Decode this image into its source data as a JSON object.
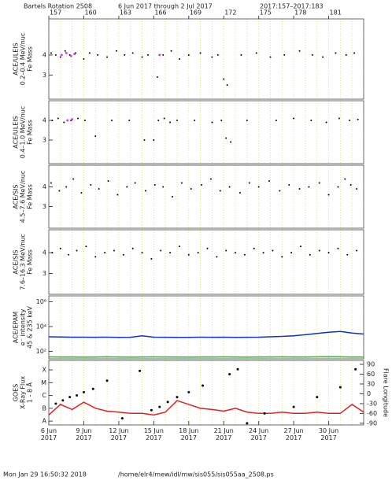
{
  "header": {
    "title": "Bartels Rotation 2508",
    "dates": "6 Jun 2017 through 2 Jul 2017",
    "doy": "2017:157–2017:183"
  },
  "footer": {
    "timestamp": "Mon Jan 29 16:50:32 2018",
    "path": "/home/elr4/mew/idl/mw/sis055/sis055aa_2508.ps"
  },
  "x_axis": {
    "xlim": [
      157,
      184
    ],
    "top_ticks": [
      157,
      160,
      163,
      166,
      169,
      172,
      175,
      178,
      181
    ],
    "bottom_ticks": [
      {
        "value": 157,
        "label": "6 Jun\n2017"
      },
      {
        "value": 160,
        "label": "9 Jun\n2017"
      },
      {
        "value": 163,
        "label": "12 Jun\n2017"
      },
      {
        "value": 166,
        "label": "15 Jun\n2017"
      },
      {
        "value": 169,
        "label": "18 Jun\n2017"
      },
      {
        "value": 172,
        "label": "21 Jun\n2017"
      },
      {
        "value": 175,
        "label": "24 Jun\n2017"
      },
      {
        "value": 178,
        "label": "27 Jun\n2017"
      },
      {
        "value": 181,
        "label": "30 Jun\n2017"
      }
    ],
    "grid_days": [
      157,
      158,
      159,
      160,
      161,
      162,
      163,
      164,
      165,
      166,
      167,
      168,
      169,
      170,
      171,
      172,
      173,
      174,
      175,
      176,
      177,
      178,
      179,
      180,
      181,
      182,
      183,
      184
    ],
    "grid_color": "#e6dc6a"
  },
  "chart_data": [
    {
      "type": "scatter",
      "ylabel": [
        "ACE/ULEIS",
        "0.2–0.4 MeV/nuc",
        "Fe Mass"
      ],
      "ylim": [
        1.8,
        5.8
      ],
      "yticks": [
        3,
        4
      ],
      "series": [
        {
          "color": "#000000",
          "x": [
            157.2,
            157.6,
            158.0,
            158.4,
            158.8,
            159.3,
            160.0,
            160.5,
            161.2,
            162.0,
            162.8,
            163.5,
            164.2,
            165.0,
            165.5,
            166.3,
            166.8,
            167.5,
            168.2,
            169.0,
            170.0,
            171.0,
            171.5,
            172.0,
            172.3,
            173.5,
            174.8,
            176.0,
            177.2,
            178.5,
            179.6,
            180.5,
            181.6,
            182.5,
            183.2
          ],
          "values": [
            4.1,
            4.0,
            3.9,
            4.2,
            4.0,
            4.1,
            3.8,
            4.1,
            4.0,
            3.9,
            4.2,
            4.0,
            4.1,
            3.9,
            4.0,
            2.9,
            4.0,
            4.2,
            3.8,
            4.0,
            4.1,
            3.9,
            4.0,
            2.8,
            2.5,
            4.0,
            4.1,
            3.9,
            4.0,
            4.2,
            4.0,
            3.9,
            4.1,
            4.0,
            4.1
          ]
        },
        {
          "color": "#d040e0",
          "x": [
            158.1,
            158.5,
            158.9,
            159.2,
            166.5
          ],
          "values": [
            4.0,
            4.1,
            3.95,
            4.05,
            4.0
          ]
        }
      ]
    },
    {
      "type": "scatter",
      "ylabel": [
        "ACE/ULEIS",
        "0.4–1.0 MeV/nuc",
        "Fe Mass"
      ],
      "ylim": [
        1.8,
        5.0
      ],
      "yticks": [
        3,
        4
      ],
      "series": [
        {
          "color": "#000000",
          "x": [
            157.3,
            157.8,
            158.3,
            158.9,
            159.5,
            160.1,
            161.0,
            162.4,
            163.9,
            165.2,
            166.0,
            166.4,
            166.9,
            167.4,
            168.0,
            169.5,
            171.0,
            171.8,
            172.2,
            172.6,
            174.0,
            176.5,
            178.0,
            179.5,
            180.8,
            181.9,
            182.8,
            183.5
          ],
          "values": [
            4.0,
            4.1,
            3.9,
            4.0,
            4.1,
            4.0,
            3.2,
            4.0,
            4.0,
            3.0,
            3.0,
            4.0,
            4.1,
            3.9,
            4.0,
            4.0,
            3.9,
            4.0,
            3.1,
            2.9,
            4.0,
            4.0,
            4.1,
            4.0,
            3.9,
            4.1,
            4.0,
            4.05
          ]
        },
        {
          "color": "#d040e0",
          "x": [
            158.6,
            159.0
          ],
          "values": [
            4.0,
            4.05
          ]
        }
      ]
    },
    {
      "type": "scatter",
      "ylabel": [
        "ACE/SIS",
        "4.5–7.6 MeV/nuc",
        "Fe Mass"
      ],
      "ylim": [
        1.9,
        5.1
      ],
      "yticks": [
        3,
        4
      ],
      "series": [
        {
          "color": "#000000",
          "x": [
            157.2,
            157.9,
            158.5,
            159.1,
            159.8,
            160.6,
            161.3,
            162.1,
            162.9,
            163.7,
            164.4,
            165.3,
            166.1,
            166.8,
            167.6,
            168.4,
            169.2,
            170.1,
            170.9,
            171.7,
            172.5,
            173.4,
            174.2,
            175.0,
            175.9,
            176.8,
            177.6,
            178.5,
            179.3,
            180.2,
            181.0,
            181.8,
            182.4,
            182.9,
            183.4
          ],
          "values": [
            4.2,
            3.8,
            4.0,
            4.4,
            3.7,
            4.1,
            3.9,
            4.3,
            3.6,
            4.0,
            4.2,
            3.8,
            4.1,
            4.0,
            3.5,
            4.2,
            3.9,
            4.1,
            4.4,
            3.8,
            4.0,
            3.7,
            4.2,
            4.0,
            4.3,
            3.8,
            4.1,
            3.9,
            4.0,
            4.2,
            3.6,
            4.0,
            4.4,
            4.1,
            3.9
          ]
        }
      ]
    },
    {
      "type": "scatter",
      "ylabel": [
        "ACE/SIS",
        "7.6–16.3 MeV/nuc",
        "Fe Mass"
      ],
      "ylim": [
        2.0,
        5.1
      ],
      "yticks": [
        3,
        4
      ],
      "series": [
        {
          "color": "#000000",
          "x": [
            157.3,
            158.0,
            158.7,
            159.4,
            160.2,
            161.0,
            161.8,
            162.6,
            163.4,
            164.2,
            165.0,
            165.8,
            166.6,
            167.4,
            168.2,
            169.0,
            169.8,
            170.6,
            171.4,
            172.2,
            173.0,
            173.8,
            174.6,
            175.4,
            176.2,
            177.0,
            177.8,
            178.6,
            179.4,
            180.2,
            181.0,
            181.8,
            182.6,
            183.4
          ],
          "values": [
            4.0,
            4.2,
            3.9,
            4.1,
            4.3,
            3.8,
            4.0,
            4.1,
            3.9,
            4.2,
            4.0,
            3.7,
            4.1,
            4.0,
            4.3,
            3.9,
            4.0,
            4.2,
            3.8,
            4.1,
            4.0,
            3.9,
            4.2,
            4.0,
            4.1,
            3.8,
            4.0,
            4.3,
            3.9,
            4.1,
            4.0,
            4.2,
            3.9,
            4.1
          ]
        }
      ]
    },
    {
      "type": "line",
      "ylabel": [
        "ACE/EPAM",
        "e⁻ intensity",
        "45 & 235 keV"
      ],
      "log": true,
      "ylim": [
        25,
        3000000
      ],
      "yticks": [
        {
          "value": 100,
          "label": "10²"
        },
        {
          "value": 10000,
          "label": "10⁴"
        },
        {
          "value": 1000000,
          "label": "10⁶"
        }
      ],
      "series": [
        {
          "color": "#1030d0",
          "x": [
            157,
            158,
            159,
            160,
            161,
            162,
            163,
            164,
            165,
            166,
            167,
            168,
            169,
            170,
            171,
            172,
            173,
            174,
            175,
            176,
            177,
            178,
            179,
            180,
            181,
            182,
            183,
            184
          ],
          "values": [
            1500,
            1450,
            1400,
            1400,
            1380,
            1400,
            1350,
            1380,
            1800,
            1400,
            1380,
            1350,
            1350,
            1400,
            1380,
            1400,
            1350,
            1380,
            1400,
            1500,
            1600,
            1800,
            2200,
            2800,
            3500,
            4000,
            3000,
            2500
          ]
        },
        {
          "color": "#20c020",
          "x": [
            157,
            158,
            159,
            160,
            161,
            162,
            163,
            164,
            165,
            166,
            167,
            168,
            169,
            170,
            171,
            172,
            173,
            174,
            175,
            176,
            177,
            178,
            179,
            180,
            181,
            182,
            183,
            184
          ],
          "values": [
            36,
            35,
            35,
            34,
            35,
            36,
            35,
            34,
            35,
            36,
            35,
            35,
            34,
            35,
            35,
            36,
            35,
            34,
            35,
            35,
            36,
            35,
            35,
            36,
            37,
            36,
            35,
            35
          ]
        }
      ]
    },
    {
      "type": "line",
      "ylabel": [
        "GOES",
        "X-Ray Flux",
        "1 - 8 Å"
      ],
      "log": true,
      "ylim": [
        5e-09,
        0.00055
      ],
      "yticks": [
        {
          "value": 1e-08,
          "label": "A"
        },
        {
          "value": 1e-07,
          "label": "B"
        },
        {
          "value": 1e-06,
          "label": "C"
        },
        {
          "value": 1e-05,
          "label": "M"
        },
        {
          "value": 0.0001,
          "label": "X"
        }
      ],
      "y2label": "Flare Longitude",
      "y2lim": [
        -95,
        102
      ],
      "y2ticks": [
        -90,
        -60,
        -30,
        0,
        30,
        60,
        90
      ],
      "series": [
        {
          "color": "#e02020",
          "x": [
            157,
            158,
            159,
            160,
            161,
            162,
            163,
            164,
            165,
            166,
            167,
            168,
            169,
            170,
            171,
            172,
            173,
            174,
            175,
            176,
            177,
            178,
            179,
            180,
            181,
            182,
            183,
            184
          ],
          "values": [
            3e-08,
            2e-07,
            8e-08,
            3e-07,
            1e-07,
            6e-08,
            5e-08,
            4e-08,
            4e-08,
            3e-08,
            5e-08,
            4e-07,
            2e-07,
            1e-07,
            8e-08,
            6e-08,
            1e-07,
            5e-08,
            4e-08,
            4e-08,
            5e-08,
            4e-08,
            4e-08,
            5e-08,
            4e-08,
            4e-08,
            2e-07,
            5e-08
          ]
        },
        {
          "color": "#000000",
          "axis": "y2",
          "mode": "markers",
          "x": [
            157.6,
            158.2,
            158.8,
            159.4,
            160.0,
            160.8,
            162.0,
            163.3,
            164.8,
            165.8,
            166.5,
            167.2,
            168.0,
            169.0,
            170.2,
            172.5,
            173.2,
            174.0,
            175.5,
            178.0,
            180.0,
            182.0,
            183.3
          ],
          "values": [
            -30,
            -20,
            -10,
            -5,
            5,
            15,
            40,
            -75,
            70,
            -50,
            -40,
            -25,
            -10,
            5,
            25,
            60,
            75,
            -90,
            -60,
            -40,
            -10,
            20,
            75
          ]
        }
      ]
    }
  ]
}
